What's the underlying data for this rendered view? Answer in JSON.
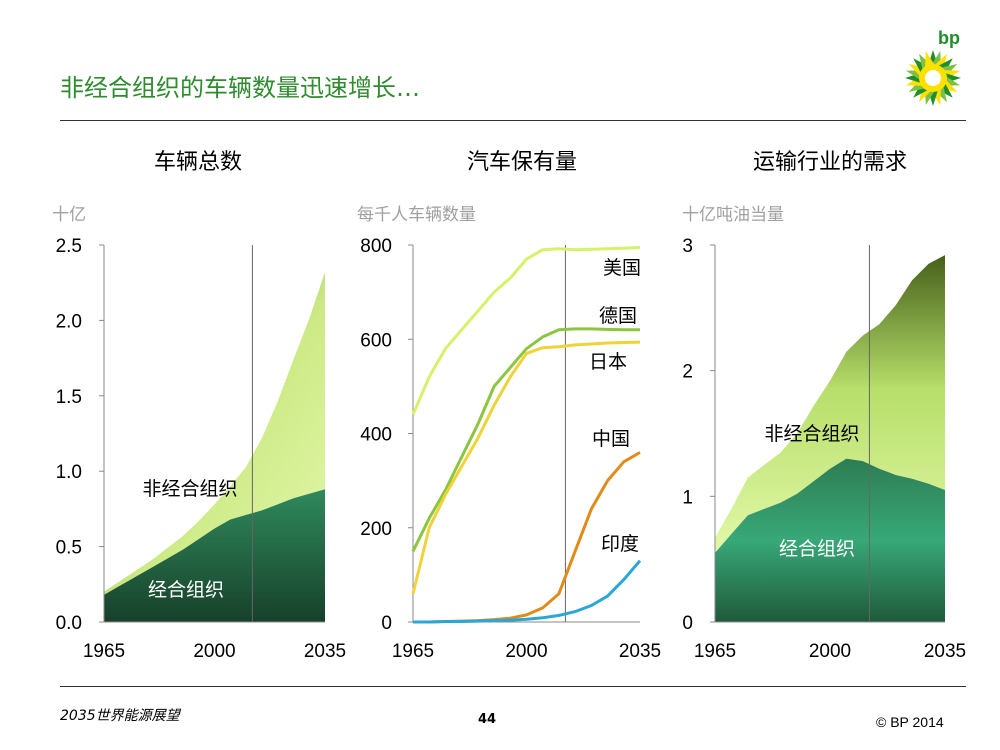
{
  "page": {
    "title": "非经合组织的车辆数量迅速增长…",
    "footer_left": "2035世界能源展望",
    "page_number": "44",
    "copyright": "© BP 2014",
    "logo_text": "bp"
  },
  "colors": {
    "title": "#2e8b2e",
    "oecd_dark": "#1e4d33",
    "oecd_light": "#3aa87a",
    "nonoecd_dark": "#4b6b1c",
    "nonoecd_light": "#d9f59a",
    "us": "#d4f26a",
    "germany": "#8cc63f",
    "japan": "#f0d23a",
    "china": "#e08b1a",
    "india": "#2aa7d6"
  },
  "chart_data": [
    {
      "type": "area",
      "title": "车辆总数",
      "ylabel": "十亿",
      "xlim": [
        1965,
        2035
      ],
      "ylim": [
        0,
        2.5
      ],
      "x_ticks": [
        "1965",
        "2000",
        "2035"
      ],
      "y_ticks": [
        "0.0",
        "0.5",
        "1.0",
        "1.5",
        "2.0",
        "2.5"
      ],
      "divider_x": 2012,
      "stacked": true,
      "x": [
        1965,
        1970,
        1975,
        1980,
        1985,
        1990,
        1995,
        2000,
        2005,
        2010,
        2015,
        2020,
        2025,
        2030,
        2035
      ],
      "series": [
        {
          "name": "经合组织",
          "values": [
            0.18,
            0.24,
            0.3,
            0.36,
            0.42,
            0.48,
            0.55,
            0.62,
            0.68,
            0.71,
            0.74,
            0.78,
            0.82,
            0.85,
            0.88
          ]
        },
        {
          "name": "非经合组织",
          "values": [
            0.02,
            0.03,
            0.04,
            0.05,
            0.07,
            0.09,
            0.12,
            0.16,
            0.22,
            0.32,
            0.48,
            0.68,
            0.92,
            1.16,
            1.44
          ]
        }
      ],
      "annotations": [
        "非经合组织",
        "经合组织"
      ]
    },
    {
      "type": "line",
      "title": "汽车保有量",
      "ylabel": "每千人车辆数量",
      "xlim": [
        1965,
        2035
      ],
      "ylim": [
        0,
        800
      ],
      "x_ticks": [
        "1965",
        "2000",
        "2035"
      ],
      "y_ticks": [
        "0",
        "200",
        "400",
        "600",
        "800"
      ],
      "divider_x": 2012,
      "x": [
        1965,
        1970,
        1975,
        1980,
        1985,
        1990,
        1995,
        2000,
        2005,
        2010,
        2015,
        2020,
        2025,
        2030,
        2035
      ],
      "series": [
        {
          "name": "美国",
          "values": [
            440,
            520,
            580,
            620,
            660,
            700,
            730,
            770,
            790,
            792,
            790,
            791,
            792,
            793,
            795
          ]
        },
        {
          "name": "德国",
          "values": [
            150,
            220,
            280,
            350,
            420,
            500,
            540,
            580,
            605,
            620,
            622,
            622,
            621,
            620,
            620
          ]
        },
        {
          "name": "日本",
          "values": [
            60,
            200,
            270,
            330,
            390,
            460,
            520,
            570,
            582,
            584,
            588,
            590,
            592,
            593,
            594
          ]
        },
        {
          "name": "中国",
          "values": [
            0,
            0,
            1,
            2,
            3,
            5,
            8,
            15,
            30,
            60,
            150,
            240,
            300,
            340,
            360
          ]
        },
        {
          "name": "印度",
          "values": [
            0,
            0,
            1,
            1,
            2,
            3,
            4,
            6,
            9,
            14,
            22,
            35,
            55,
            90,
            130
          ]
        }
      ]
    },
    {
      "type": "area",
      "title": "运输行业的需求",
      "ylabel": "十亿吨油当量",
      "xlim": [
        1965,
        2035
      ],
      "ylim": [
        0,
        3
      ],
      "x_ticks": [
        "1965",
        "2000",
        "2035"
      ],
      "y_ticks": [
        "0",
        "1",
        "2",
        "3"
      ],
      "divider_x": 2012,
      "stacked": true,
      "x": [
        1965,
        1970,
        1975,
        1980,
        1985,
        1990,
        1995,
        2000,
        2005,
        2010,
        2015,
        2020,
        2025,
        2030,
        2035
      ],
      "series": [
        {
          "name": "经合组织",
          "values": [
            0.55,
            0.7,
            0.85,
            0.9,
            0.95,
            1.02,
            1.12,
            1.22,
            1.3,
            1.28,
            1.22,
            1.17,
            1.14,
            1.1,
            1.05
          ]
        },
        {
          "name": "非经合组织",
          "values": [
            0.12,
            0.2,
            0.3,
            0.35,
            0.4,
            0.48,
            0.6,
            0.7,
            0.85,
            1.0,
            1.15,
            1.35,
            1.58,
            1.75,
            1.87
          ]
        }
      ],
      "annotations": [
        "非经合组织",
        "经合组织"
      ]
    }
  ]
}
